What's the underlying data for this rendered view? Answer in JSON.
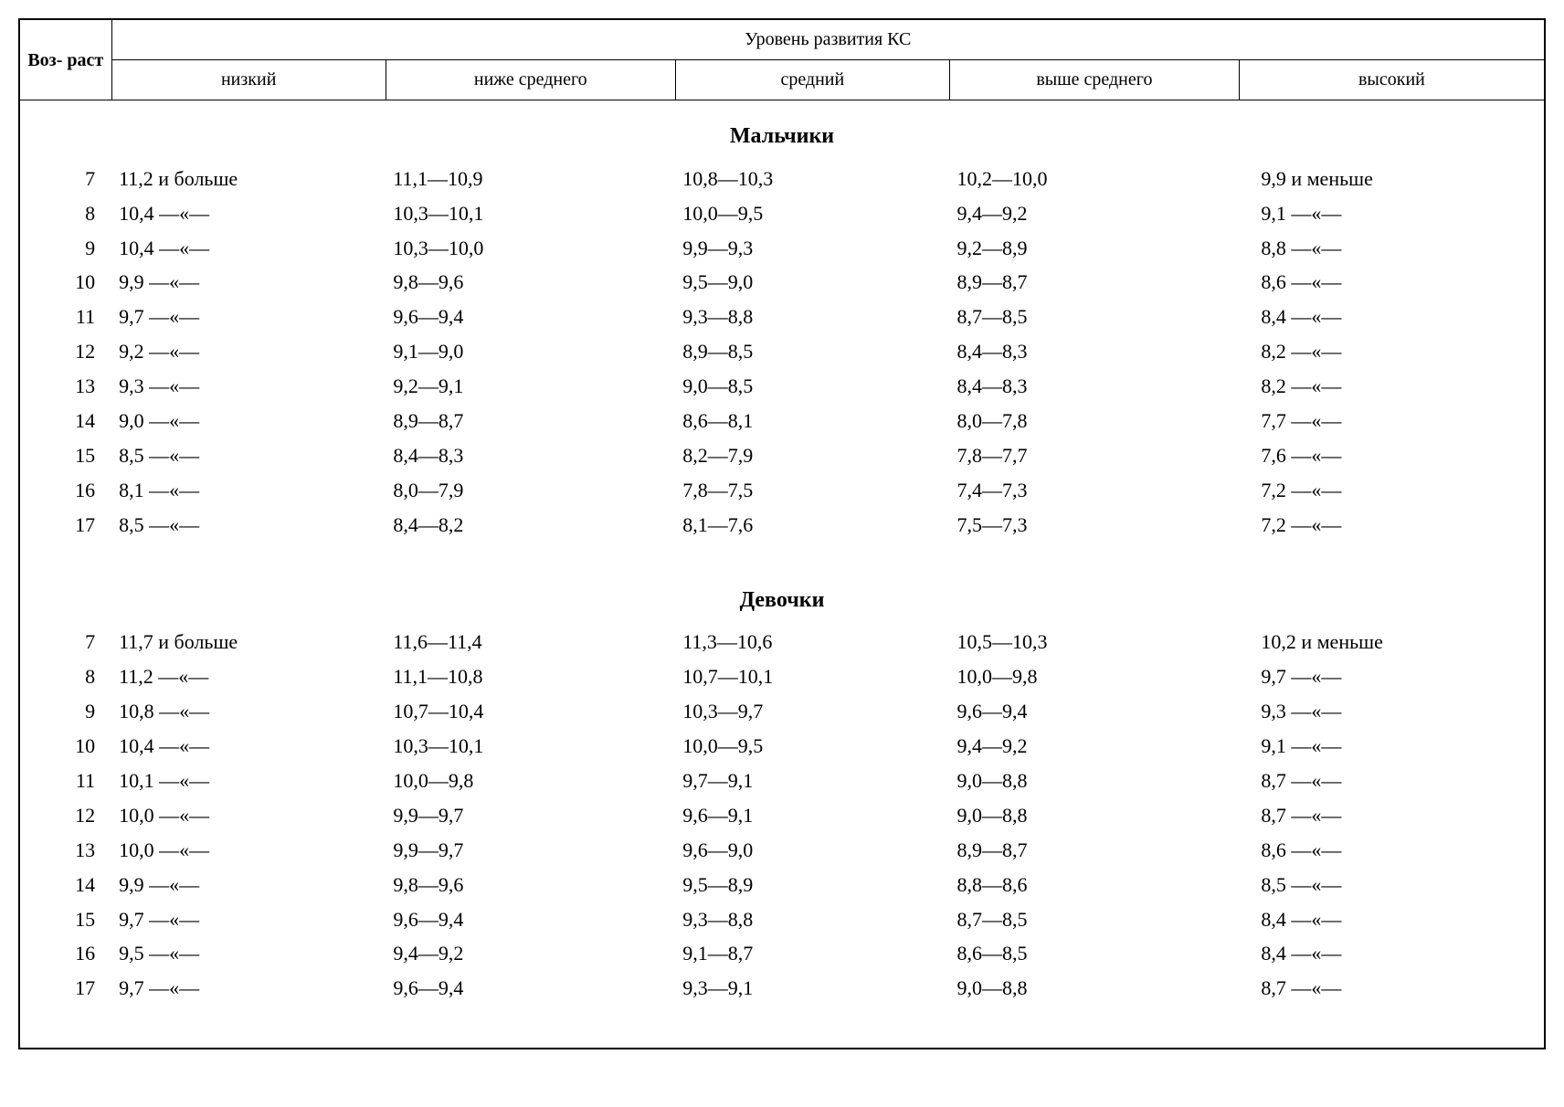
{
  "header": {
    "age_label": "Воз-\nраст",
    "super_header": "Уровень развития КС",
    "columns": [
      "низкий",
      "ниже среднего",
      "средний",
      "выше среднего",
      "высокий"
    ]
  },
  "sections": [
    {
      "title": "Мальчики",
      "rows": [
        {
          "age": "7",
          "c1": "11,2 и больше",
          "c2": "11,1—10,9",
          "c3": "10,8—10,3",
          "c4": "10,2—10,0",
          "c5": "9,9 и меньше"
        },
        {
          "age": "8",
          "c1": "10,4 —«—",
          "c2": "10,3—10,1",
          "c3": "10,0—9,5",
          "c4": "9,4—9,2",
          "c5": "9,1 —«—"
        },
        {
          "age": "9",
          "c1": "10,4 —«—",
          "c2": "10,3—10,0",
          "c3": "9,9—9,3",
          "c4": "9,2—8,9",
          "c5": "8,8 —«—"
        },
        {
          "age": "10",
          "c1": "9,9 —«—",
          "c2": "9,8—9,6",
          "c3": "9,5—9,0",
          "c4": "8,9—8,7",
          "c5": "8,6 —«—"
        },
        {
          "age": "11",
          "c1": "9,7 —«—",
          "c2": "9,6—9,4",
          "c3": "9,3—8,8",
          "c4": "8,7—8,5",
          "c5": "8,4 —«—"
        },
        {
          "age": "12",
          "c1": "9,2 —«—",
          "c2": "9,1—9,0",
          "c3": "8,9—8,5",
          "c4": "8,4—8,3",
          "c5": "8,2 —«—"
        },
        {
          "age": "13",
          "c1": "9,3 —«—",
          "c2": "9,2—9,1",
          "c3": "9,0—8,5",
          "c4": "8,4—8,3",
          "c5": "8,2 —«—"
        },
        {
          "age": "14",
          "c1": "9,0 —«—",
          "c2": "8,9—8,7",
          "c3": "8,6—8,1",
          "c4": "8,0—7,8",
          "c5": "7,7 —«—"
        },
        {
          "age": "15",
          "c1": "8,5 —«—",
          "c2": "8,4—8,3",
          "c3": "8,2—7,9",
          "c4": "7,8—7,7",
          "c5": "7,6 —«—"
        },
        {
          "age": "16",
          "c1": "8,1 —«—",
          "c2": "8,0—7,9",
          "c3": "7,8—7,5",
          "c4": "7,4—7,3",
          "c5": "7,2 —«—"
        },
        {
          "age": "17",
          "c1": "8,5 —«—",
          "c2": "8,4—8,2",
          "c3": "8,1—7,6",
          "c4": "7,5—7,3",
          "c5": "7,2 —«—"
        }
      ]
    },
    {
      "title": "Девочки",
      "rows": [
        {
          "age": "7",
          "c1": "11,7 и больше",
          "c2": "11,6—11,4",
          "c3": "11,3—10,6",
          "c4": "10,5—10,3",
          "c5": "10,2 и меньше"
        },
        {
          "age": "8",
          "c1": "11,2 —«—",
          "c2": "11,1—10,8",
          "c3": "10,7—10,1",
          "c4": "10,0—9,8",
          "c5": "9,7 —«—"
        },
        {
          "age": "9",
          "c1": "10,8 —«—",
          "c2": "10,7—10,4",
          "c3": "10,3—9,7",
          "c4": "9,6—9,4",
          "c5": "9,3 —«—"
        },
        {
          "age": "10",
          "c1": "10,4 —«—",
          "c2": "10,3—10,1",
          "c3": "10,0—9,5",
          "c4": "9,4—9,2",
          "c5": "9,1 —«—"
        },
        {
          "age": "11",
          "c1": "10,1 —«—",
          "c2": "10,0—9,8",
          "c3": "9,7—9,1",
          "c4": "9,0—8,8",
          "c5": "8,7 —«—"
        },
        {
          "age": "12",
          "c1": "10,0 —«—",
          "c2": "9,9—9,7",
          "c3": "9,6—9,1",
          "c4": "9,0—8,8",
          "c5": "8,7 —«—"
        },
        {
          "age": "13",
          "c1": "10,0 —«—",
          "c2": "9,9—9,7",
          "c3": "9,6—9,0",
          "c4": "8,9—8,7",
          "c5": "8,6 —«—"
        },
        {
          "age": "14",
          "c1": "9,9 —«—",
          "c2": "9,8—9,6",
          "c3": "9,5—8,9",
          "c4": "8,8—8,6",
          "c5": "8,5 —«—"
        },
        {
          "age": "15",
          "c1": "9,7 —«—",
          "c2": "9,6—9,4",
          "c3": "9,3—8,8",
          "c4": "8,7—8,5",
          "c5": "8,4 —«—"
        },
        {
          "age": "16",
          "c1": "9,5 —«—",
          "c2": "9,4—9,2",
          "c3": "9,1—8,7",
          "c4": "8,6—8,5",
          "c5": "8,4 —«—"
        },
        {
          "age": "17",
          "c1": "9,7 —«—",
          "c2": "9,6—9,4",
          "c3": "9,3—9,1",
          "c4": "9,0—8,8",
          "c5": "8,7 —«—"
        }
      ]
    }
  ]
}
